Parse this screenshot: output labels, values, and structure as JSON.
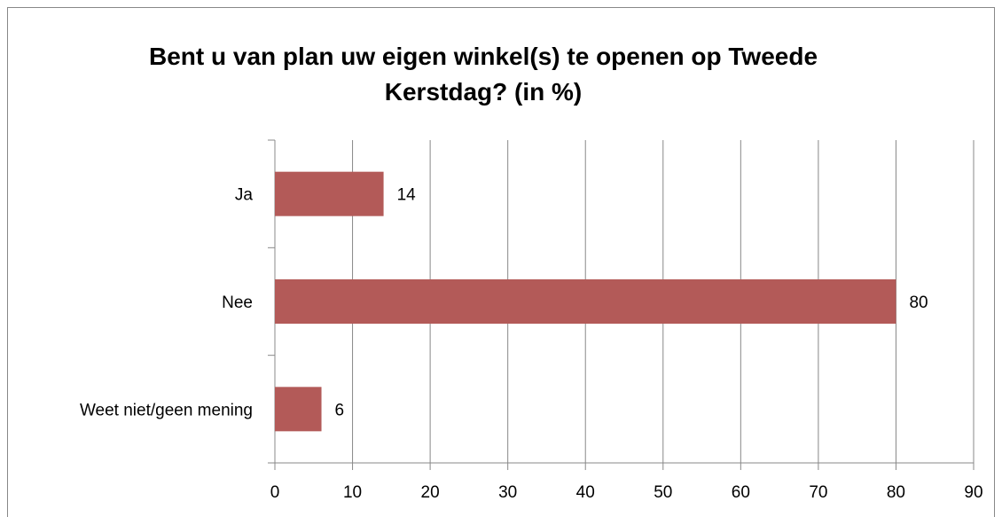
{
  "chart_data": {
    "type": "bar",
    "orientation": "horizontal",
    "title": "Bent u van plan uw eigen winkel(s) te openen op Tweede Kerstdag? (in %)",
    "categories": [
      "Ja",
      "Nee",
      "Weet niet/geen mening"
    ],
    "values": [
      14,
      80,
      6
    ],
    "color": "#b35a58",
    "xlim": [
      0,
      90
    ],
    "xticks": [
      0,
      10,
      20,
      30,
      40,
      50,
      60,
      70,
      80,
      90
    ],
    "grid": true
  }
}
